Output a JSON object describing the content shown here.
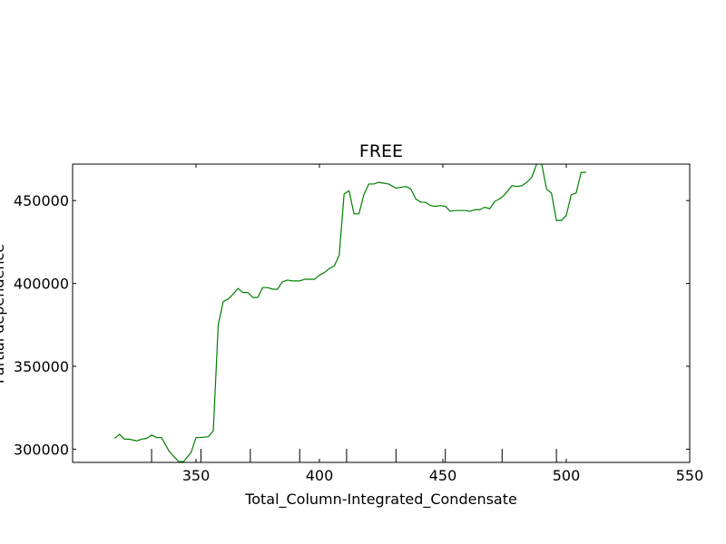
{
  "chart_data": {
    "type": "line",
    "title": "FREE",
    "xlabel": "Total_Column-Integrated_Condensate",
    "ylabel": "Partial dependence",
    "xlim": [
      300,
      550
    ],
    "ylim": [
      292000,
      472000
    ],
    "xticks": [
      350,
      400,
      450,
      500,
      550
    ],
    "yticks": [
      300000,
      350000,
      400000,
      450000
    ],
    "grid": false,
    "line_color": "#008000",
    "rug_x": [
      332,
      352,
      372,
      392,
      411,
      431,
      451,
      474,
      496
    ],
    "series": [
      {
        "x": [
          317,
          319,
          321,
          323,
          326,
          328,
          330,
          332,
          334,
          336,
          339,
          341,
          343,
          345,
          348,
          350,
          352,
          355,
          357,
          359,
          361,
          363,
          365,
          367,
          369,
          371,
          373,
          375,
          377,
          379,
          381,
          383,
          385,
          387,
          389,
          392,
          394,
          396,
          398,
          400,
          402,
          404,
          406,
          408,
          410,
          412,
          414,
          416,
          418,
          420,
          422,
          424,
          426,
          428,
          431,
          433,
          435,
          437,
          439,
          441,
          443,
          445,
          447,
          449,
          451,
          453,
          455,
          457,
          459,
          461,
          463,
          465,
          467,
          469,
          471,
          473,
          475,
          478,
          480,
          482,
          484,
          486,
          488,
          490,
          492,
          494,
          496,
          498,
          500,
          502,
          504,
          506,
          508
        ],
        "y": [
          306500,
          309000,
          306000,
          306000,
          305000,
          306000,
          306500,
          308500,
          307000,
          307000,
          299000,
          295500,
          292500,
          292500,
          298000,
          307000,
          307000,
          307500,
          311000,
          375000,
          389000,
          390500,
          393500,
          397000,
          394500,
          394500,
          391500,
          391500,
          397500,
          397500,
          396500,
          396500,
          401000,
          402000,
          401500,
          401500,
          402500,
          402500,
          402500,
          405000,
          406500,
          409000,
          410500,
          417000,
          454000,
          456000,
          442000,
          442000,
          453500,
          460000,
          460000,
          461000,
          460500,
          460000,
          457500,
          458000,
          458500,
          457000,
          451000,
          449000,
          449000,
          447000,
          446500,
          447000,
          446500,
          443500,
          444000,
          444000,
          444000,
          443500,
          444500,
          444500,
          446000,
          445000,
          449500,
          451000,
          453500,
          459000,
          458500,
          459000,
          461000,
          464000,
          472000,
          472500,
          457000,
          454500,
          438000,
          438000,
          441000,
          453500,
          454500,
          467000,
          467000
        ]
      }
    ]
  }
}
